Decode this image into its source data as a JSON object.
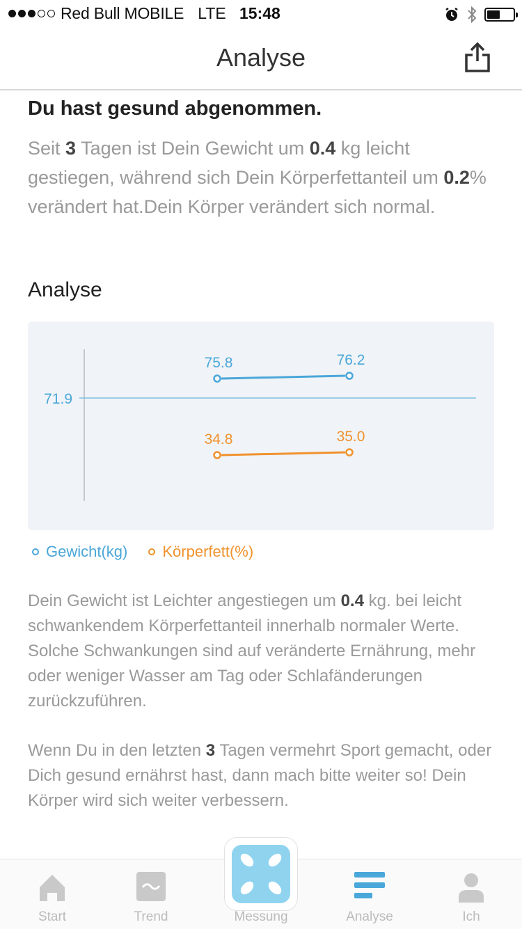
{
  "status_bar": {
    "carrier": "Red Bull MOBILE",
    "network": "LTE",
    "time": "15:48"
  },
  "nav": {
    "title": "Analyse"
  },
  "summary": {
    "headline": "Du hast gesund abgenommen.",
    "t1": "Seit ",
    "days": "3",
    "t2": " Tagen ist Dein Gewicht um ",
    "weight_change": "0.4",
    "t3": " kg leicht gestiegen, während sich Dein Körperfettanteil um ",
    "fat_change": "0.2",
    "t4": "% verändert hat.Dein Körper verändert sich normal."
  },
  "section": {
    "title": "Analyse"
  },
  "chart_data": {
    "type": "line",
    "reference_line": {
      "value": 71.9,
      "label": "71.9"
    },
    "series": [
      {
        "name": "Gewicht(kg)",
        "color": "#4aa7d9",
        "values": [
          75.8,
          76.2
        ],
        "labels": [
          "75.8",
          "76.2"
        ]
      },
      {
        "name": "Körperfett(%)",
        "color": "#f0922e",
        "values": [
          34.8,
          35.0
        ],
        "labels": [
          "34.8",
          "35.0"
        ]
      }
    ],
    "legend": "bottom-left"
  },
  "legend": {
    "weight": "Gewicht(kg)",
    "fat": "Körperfett(%)"
  },
  "details": {
    "a1": "Dein Gewicht ist Leichter angestiegen um ",
    "weight_change": "0.4",
    "a2": " kg. bei leicht schwankendem Körperfettanteil innerhalb normaler Werte. Solche Schwankungen sind auf veränderte Ernährung, mehr oder weniger Wasser am Tag oder Schlafänderungen zurückzuführen.",
    "b1": "Wenn Du in den letzten ",
    "days": "3",
    "b2": " Tagen vermehrt Sport gemacht, oder Dich gesund ernährst hast, dann mach bitte weiter so! Dein Körper wird sich weiter verbessern."
  },
  "tabs": [
    {
      "label": "Start",
      "icon": "home-icon"
    },
    {
      "label": "Trend",
      "icon": "trend-icon"
    },
    {
      "label": "Messung",
      "icon": "scale-icon"
    },
    {
      "label": "Analyse",
      "icon": "analysis-icon",
      "active": true
    },
    {
      "label": "Ich",
      "icon": "person-icon"
    }
  ],
  "colors": {
    "accent": "#4aa7d9",
    "fat": "#f0922e",
    "text_gray": "#9a9a9a",
    "tab_inactive": "#bbbbbb",
    "measure_button": "#8fd3ef"
  }
}
